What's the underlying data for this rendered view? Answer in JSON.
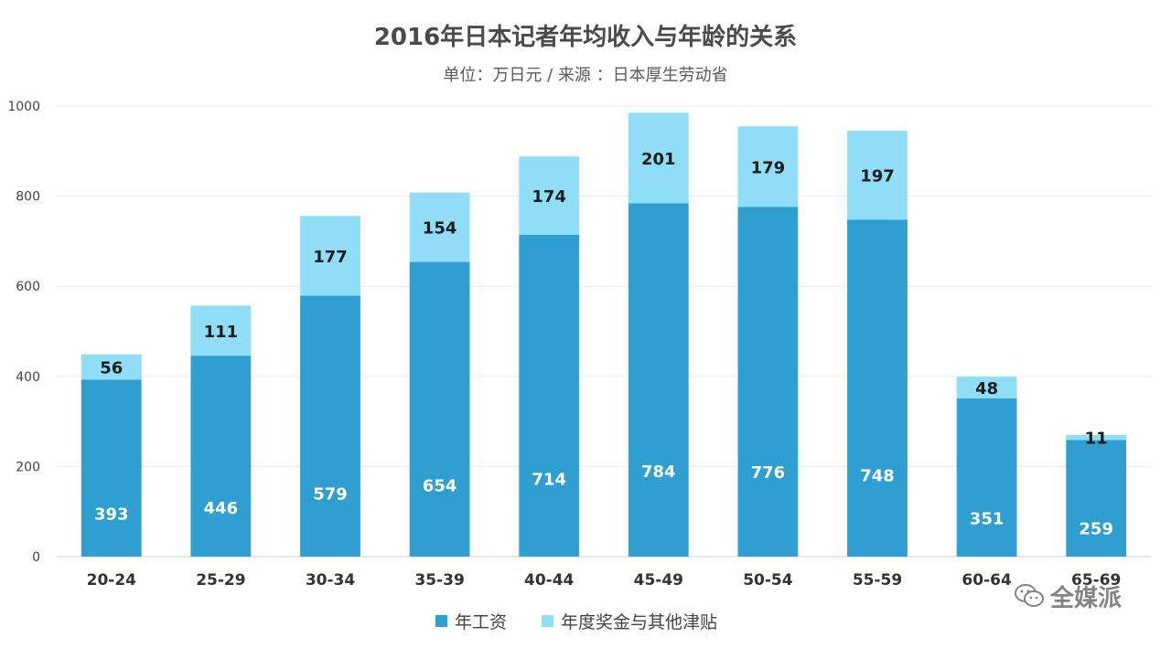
{
  "title": "2016年日本记者年均收入与年龄的关系",
  "subtitle": "单位：万日元 / 来源 ：日本厚生劳动省",
  "watermark": "全媒派",
  "colors": {
    "salary": "#2e9fd0",
    "bonus": "#8fddf7",
    "grid": "#e9e9e9",
    "axis": "#cfcfcf"
  },
  "chart_data": {
    "type": "bar",
    "stacked": true,
    "categories": [
      "20-24",
      "25-29",
      "30-34",
      "35-39",
      "40-44",
      "45-49",
      "50-54",
      "55-59",
      "60-64",
      "65-69"
    ],
    "series": [
      {
        "name": "年工资",
        "values": [
          393,
          446,
          579,
          654,
          714,
          784,
          776,
          748,
          351,
          259
        ]
      },
      {
        "name": "年度奖金与其他津贴",
        "values": [
          56,
          111,
          177,
          154,
          174,
          201,
          179,
          197,
          48,
          11
        ]
      }
    ],
    "ylim": [
      0,
      1000
    ],
    "yticks": [
      0,
      200,
      400,
      600,
      800,
      1000
    ],
    "grid": true,
    "legend_position": "bottom"
  }
}
